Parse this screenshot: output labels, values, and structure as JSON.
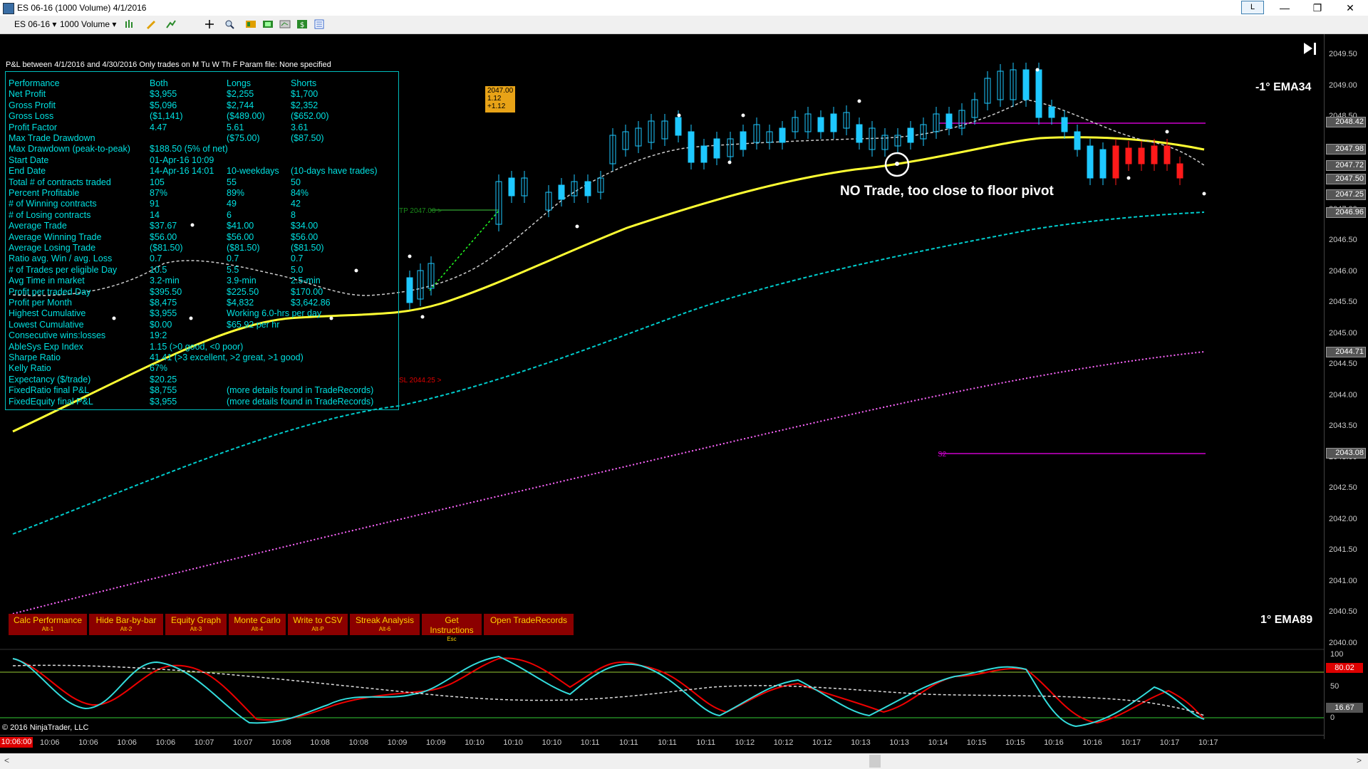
{
  "window": {
    "title": "ES 06-16 (1000 Volume)  4/1/2016",
    "l_button": "L",
    "minimize": "—",
    "restore": "❐",
    "close": "✕"
  },
  "toolbar": {
    "instrument": "ES 06-16",
    "period": "1000 Volume"
  },
  "perf": {
    "header": "P&L between 4/1/2016 and 4/30/2016  Only trades on M Tu W Th F   Param file: None specified",
    "rows": [
      [
        "Performance",
        "Both",
        "Longs",
        "Shorts"
      ],
      [
        "Net Profit",
        "$3,955",
        "$2,255",
        "$1,700"
      ],
      [
        "Gross Profit",
        "$5,096",
        "$2,744",
        "$2,352"
      ],
      [
        "Gross Loss",
        "($1,141)",
        "($489.00)",
        "($652.00)"
      ],
      [
        "Profit Factor",
        "4.47",
        "5.61",
        "3.61"
      ],
      [
        "Max Trade Drawdown",
        "",
        "($75.00)",
        "($87.50)"
      ],
      [
        "Max Drawdown (peak-to-peak)",
        "$188.50 (5% of net)",
        "",
        ""
      ],
      [
        "Start Date",
        "01-Apr-16 10:09",
        "",
        ""
      ],
      [
        "End Date",
        "14-Apr-16 14:01",
        "10-weekdays",
        "(10-days have trades)"
      ],
      [
        "Total # of contracts traded",
        "105",
        "55",
        "50"
      ],
      [
        "Percent Profitable",
        "87%",
        "89%",
        "84%"
      ],
      [
        "# of Winning contracts",
        "91",
        "49",
        "42"
      ],
      [
        "# of Losing contracts",
        "14",
        "6",
        "8"
      ],
      [
        "Average Trade",
        "$37.67",
        "$41.00",
        "$34.00"
      ],
      [
        "Average Winning Trade",
        "$56.00",
        "$56.00",
        "$56.00"
      ],
      [
        "Average Losing Trade",
        "($81.50)",
        "($81.50)",
        "($81.50)"
      ],
      [
        "Ratio avg. Win / avg. Loss",
        "0.7",
        "0.7",
        "0.7"
      ],
      [
        "# of Trades per eligible Day",
        "10.5",
        "5.5",
        "5.0"
      ],
      [
        "Avg Time in market",
        "3.2-min",
        "3.9-min",
        "2.5-min"
      ],
      [
        "Profit per traded Day",
        "$395.50",
        "$225.50",
        "$170.00"
      ],
      [
        "Profit per Month",
        "$8,475",
        "$4,832",
        "$3,642.86"
      ],
      [
        "Highest Cumulative",
        "$3,955",
        "Working 6.0-hrs per day",
        ""
      ],
      [
        "Lowest Cumulative",
        "$0.00",
        "$65.92 per hr",
        ""
      ],
      [
        "Consecutive wins:losses",
        "19:2",
        "",
        ""
      ],
      [
        "AbleSys Exp Index",
        "1.15 (>0 good, <0 poor)",
        "",
        ""
      ],
      [
        "Sharpe Ratio",
        "41.41 (>3 excellent, >2 great, >1 good)",
        "",
        ""
      ],
      [
        "Kelly Ratio",
        "67%",
        "",
        ""
      ],
      [
        "Expectancy ($/trade)",
        "$20.25",
        "",
        ""
      ],
      [
        "FixedRatio final P&L",
        "$8,755",
        "(more details found in TradeRecords)",
        ""
      ],
      [
        "FixedEquity final P&L",
        "$3,955",
        "(more details found in TradeRecords)",
        ""
      ]
    ]
  },
  "buttons": [
    {
      "label": "Calc Performance",
      "key": "Alt-1"
    },
    {
      "label": "Hide Bar-by-bar",
      "key": "Alt-2"
    },
    {
      "label": "Equity Graph",
      "key": "Alt-3"
    },
    {
      "label": "Monte Carlo",
      "key": "Alt-4"
    },
    {
      "label": "Write to CSV",
      "key": "Alt-P"
    },
    {
      "label": "Streak Analysis",
      "key": "Alt-6"
    },
    {
      "label": "Get Instructions",
      "key": "Esc"
    },
    {
      "label": "Open TradeRecords",
      "key": ""
    }
  ],
  "labels": {
    "ema34": "-1° EMA34",
    "ema89": "1° EMA89",
    "annotation": "NO Trade, too close to floor pivot",
    "copyright": "© 2016 NinjaTrader, LLC",
    "tp": "TP 2047.00 >",
    "sl": "SL 2044.25 >",
    "s2": "S2",
    "callout": [
      "2047.00",
      "1.12",
      "+1.12"
    ],
    "play_icon": "▶|"
  },
  "price_axis": {
    "ticks": [
      "2049.50",
      "2049.00",
      "2048.50",
      "2048.00",
      "2047.50",
      "2047.00",
      "2046.50",
      "2046.00",
      "2045.50",
      "2045.00",
      "2044.50",
      "2044.00",
      "2043.50",
      "2043.00",
      "2042.50",
      "2042.00",
      "2041.50",
      "2041.00",
      "2040.50",
      "2040.00"
    ],
    "markers": [
      {
        "value": "2048.42",
        "color": "#cccccc"
      },
      {
        "value": "2047.98",
        "color": "#cccccc"
      },
      {
        "value": "2047.72",
        "color": "#cccccc"
      },
      {
        "value": "2047.50",
        "color": "#cccccc"
      },
      {
        "value": "2047.25",
        "color": "#cccccc"
      },
      {
        "value": "2046.96",
        "color": "#cccccc"
      },
      {
        "value": "2044.71",
        "color": "#cccccc"
      },
      {
        "value": "2043.08",
        "color": "#cccccc"
      }
    ]
  },
  "osc_axis": {
    "ticks": [
      "100",
      "50",
      "0"
    ],
    "marker_red": "80.02",
    "marker_2": "16.67"
  },
  "time_axis": {
    "current": "10:06:00",
    "ticks": [
      "10:06",
      "10:06",
      "10:06",
      "10:06",
      "10:07",
      "10:07",
      "10:08",
      "10:08",
      "10:08",
      "10:09",
      "10:09",
      "10:10",
      "10:10",
      "10:10",
      "10:11",
      "10:11",
      "10:11",
      "10:11",
      "10:12",
      "10:12",
      "10:12",
      "10:13",
      "10:13",
      "10:14",
      "10:15",
      "10:15",
      "10:16",
      "10:16",
      "10:17",
      "10:17",
      "10:17"
    ]
  },
  "colors": {
    "ema34": "#ffff33",
    "ema89": "#00cccc",
    "pivot": "#ff66ff",
    "up_bar": "#1ec8ff",
    "down_bar": "#ff1a1a",
    "panel": "#00e0e0",
    "button_bg": "#8b0000",
    "button_fg": "#ffd000"
  }
}
